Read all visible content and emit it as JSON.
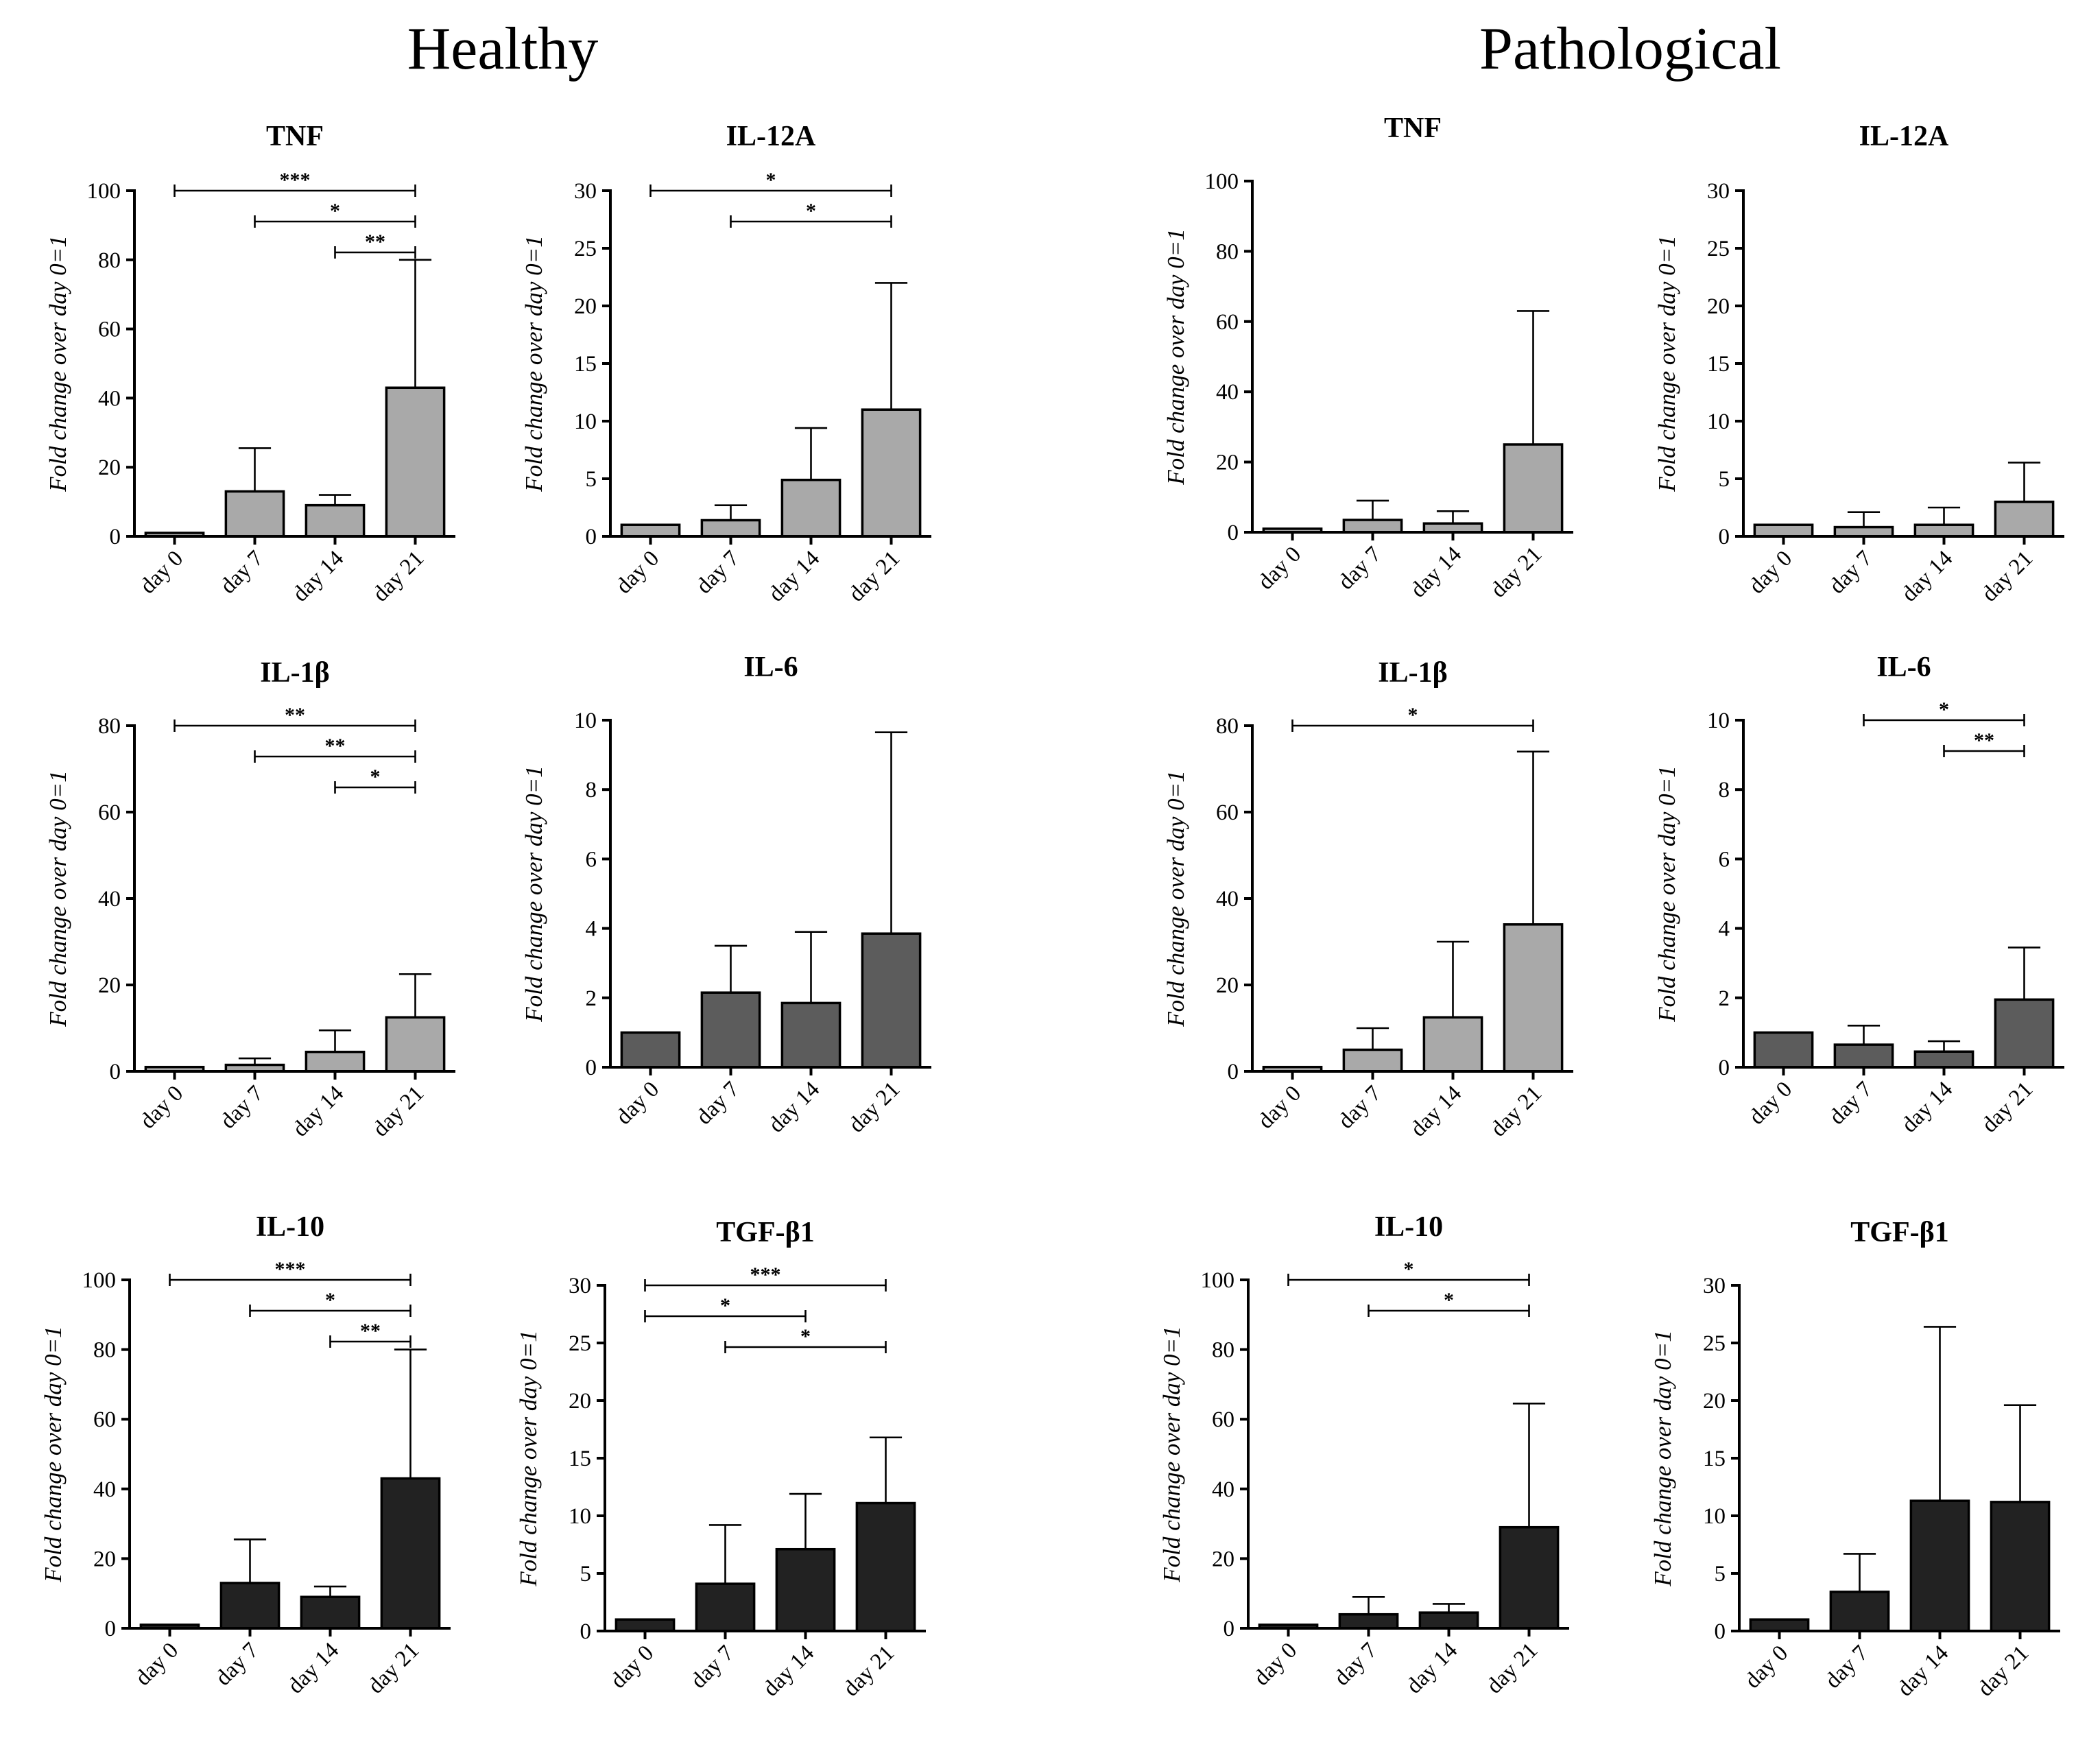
{
  "groups": [
    "Healthy",
    "Pathological"
  ],
  "colors": {
    "light": "#a9a9a9",
    "mid": "#5c5c5c",
    "dark": "#222222"
  },
  "chart_data": [
    {
      "type": "bar",
      "group": "Healthy",
      "title": "TNF",
      "ylabel": "Fold change over day 0=1",
      "categories": [
        "day 0",
        "day 7",
        "day 14",
        "day 21"
      ],
      "values": [
        1,
        13,
        9,
        43
      ],
      "errors": [
        0,
        12.5,
        3,
        37
      ],
      "ylim": [
        0,
        100
      ],
      "yticks": [
        0,
        20,
        40,
        60,
        80,
        100
      ],
      "color": "light",
      "significance": [
        {
          "from": 0,
          "to": 3,
          "label": "***"
        },
        {
          "from": 1,
          "to": 3,
          "label": "*"
        },
        {
          "from": 2,
          "to": 3,
          "label": "**"
        }
      ]
    },
    {
      "type": "bar",
      "group": "Healthy",
      "title": "IL-12A",
      "ylabel": "Fold change over day 0=1",
      "categories": [
        "day 0",
        "day 7",
        "day 14",
        "day 21"
      ],
      "values": [
        1,
        1.4,
        4.9,
        11
      ],
      "errors": [
        0,
        1.3,
        4.5,
        11
      ],
      "ylim": [
        0,
        30
      ],
      "yticks": [
        0,
        5,
        10,
        15,
        20,
        25,
        30
      ],
      "color": "light",
      "significance": [
        {
          "from": 0,
          "to": 3,
          "label": "*"
        },
        {
          "from": 1,
          "to": 3,
          "label": "*"
        }
      ]
    },
    {
      "type": "bar",
      "group": "Pathological",
      "title": "TNF",
      "ylabel": "Fold change over day 0=1",
      "categories": [
        "day 0",
        "day 7",
        "day 14",
        "day 21"
      ],
      "values": [
        1,
        3.5,
        2.5,
        25
      ],
      "errors": [
        0,
        5.5,
        3.5,
        38
      ],
      "ylim": [
        0,
        100
      ],
      "yticks": [
        0,
        20,
        40,
        60,
        80,
        100
      ],
      "color": "light",
      "significance": []
    },
    {
      "type": "bar",
      "group": "Pathological",
      "title": "IL-12A",
      "ylabel": "Fold change over day 0=1",
      "categories": [
        "day 0",
        "day 7",
        "day 14",
        "day 21"
      ],
      "values": [
        1,
        0.8,
        1,
        3
      ],
      "errors": [
        0,
        1.3,
        1.5,
        3.4
      ],
      "ylim": [
        0,
        30
      ],
      "yticks": [
        0,
        5,
        10,
        15,
        20,
        25,
        30
      ],
      "color": "light",
      "significance": []
    },
    {
      "type": "bar",
      "group": "Healthy",
      "title": "IL-1β",
      "ylabel": "Fold change over day 0=1",
      "categories": [
        "day 0",
        "day 7",
        "day 14",
        "day 21"
      ],
      "values": [
        1,
        1.5,
        4.5,
        12.5
      ],
      "errors": [
        0,
        1.5,
        5,
        10
      ],
      "ylim": [
        0,
        80
      ],
      "yticks": [
        0,
        20,
        40,
        60,
        80
      ],
      "color": "light",
      "significance": [
        {
          "from": 0,
          "to": 3,
          "label": "**"
        },
        {
          "from": 1,
          "to": 3,
          "label": "**"
        },
        {
          "from": 2,
          "to": 3,
          "label": "*"
        }
      ]
    },
    {
      "type": "bar",
      "group": "Healthy",
      "title": "IL-6",
      "ylabel": "Fold change over day 0=1",
      "categories": [
        "day 0",
        "day 7",
        "day 14",
        "day 21"
      ],
      "values": [
        1,
        2.15,
        1.85,
        3.85
      ],
      "errors": [
        0,
        1.35,
        2.05,
        5.8
      ],
      "ylim": [
        0,
        10
      ],
      "yticks": [
        0,
        2,
        4,
        6,
        8,
        10
      ],
      "color": "mid",
      "significance": []
    },
    {
      "type": "bar",
      "group": "Pathological",
      "title": "IL-1β",
      "ylabel": "Fold change over day 0=1",
      "categories": [
        "day 0",
        "day 7",
        "day 14",
        "day 21"
      ],
      "values": [
        1,
        5,
        12.5,
        34
      ],
      "errors": [
        0,
        5,
        17.5,
        40
      ],
      "ylim": [
        0,
        80
      ],
      "yticks": [
        0,
        20,
        40,
        60,
        80
      ],
      "color": "light",
      "significance": [
        {
          "from": 0,
          "to": 3,
          "label": "*"
        }
      ]
    },
    {
      "type": "bar",
      "group": "Pathological",
      "title": "IL-6",
      "ylabel": "Fold change over day 0=1",
      "categories": [
        "day 0",
        "day 7",
        "day 14",
        "day 21"
      ],
      "values": [
        1,
        0.65,
        0.45,
        1.95
      ],
      "errors": [
        0,
        0.55,
        0.3,
        1.5
      ],
      "ylim": [
        0,
        10
      ],
      "yticks": [
        0,
        2,
        4,
        6,
        8,
        10
      ],
      "color": "mid",
      "significance": [
        {
          "from": 1,
          "to": 3,
          "label": "*"
        },
        {
          "from": 2,
          "to": 3,
          "label": "**"
        }
      ]
    },
    {
      "type": "bar",
      "group": "Healthy",
      "title": "IL-10",
      "ylabel": "Fold change over day 0=1",
      "categories": [
        "day 0",
        "day 7",
        "day 14",
        "day 21"
      ],
      "values": [
        1,
        13,
        9,
        43
      ],
      "errors": [
        0,
        12.5,
        3,
        37
      ],
      "ylim": [
        0,
        100
      ],
      "yticks": [
        0,
        20,
        40,
        60,
        80,
        100
      ],
      "color": "dark",
      "significance": [
        {
          "from": 0,
          "to": 3,
          "label": "***"
        },
        {
          "from": 1,
          "to": 3,
          "label": "*"
        },
        {
          "from": 2,
          "to": 3,
          "label": "**"
        }
      ]
    },
    {
      "type": "bar",
      "group": "Healthy",
      "title": "TGF-β1",
      "ylabel": "Fold change over day 0=1",
      "categories": [
        "day 0",
        "day 7",
        "day 14",
        "day 21"
      ],
      "values": [
        1,
        4.1,
        7.1,
        11.1
      ],
      "errors": [
        0,
        5.1,
        4.8,
        5.7
      ],
      "ylim": [
        0,
        30
      ],
      "yticks": [
        0,
        5,
        10,
        15,
        20,
        25,
        30
      ],
      "color": "dark",
      "significance": [
        {
          "from": 0,
          "to": 3,
          "label": "***"
        },
        {
          "from": 0,
          "to": 2,
          "label": "*"
        },
        {
          "from": 1,
          "to": 3,
          "label": "*"
        }
      ]
    },
    {
      "type": "bar",
      "group": "Pathological",
      "title": "IL-10",
      "ylabel": "Fold change over day 0=1",
      "categories": [
        "day 0",
        "day 7",
        "day 14",
        "day 21"
      ],
      "values": [
        1,
        4,
        4.5,
        29
      ],
      "errors": [
        0,
        5,
        2.5,
        35.5
      ],
      "ylim": [
        0,
        100
      ],
      "yticks": [
        0,
        20,
        40,
        60,
        80,
        100
      ],
      "color": "dark",
      "significance": [
        {
          "from": 0,
          "to": 3,
          "label": "*"
        },
        {
          "from": 1,
          "to": 3,
          "label": "*"
        }
      ]
    },
    {
      "type": "bar",
      "group": "Pathological",
      "title": "TGF-β1",
      "ylabel": "Fold change over day 0=1",
      "categories": [
        "day 0",
        "day 7",
        "day 14",
        "day 21"
      ],
      "values": [
        1,
        3.4,
        11.3,
        11.2
      ],
      "errors": [
        0,
        3.3,
        15.1,
        8.4
      ],
      "ylim": [
        0,
        30
      ],
      "yticks": [
        0,
        5,
        10,
        15,
        20,
        25,
        30
      ],
      "color": "dark",
      "significance": []
    }
  ]
}
